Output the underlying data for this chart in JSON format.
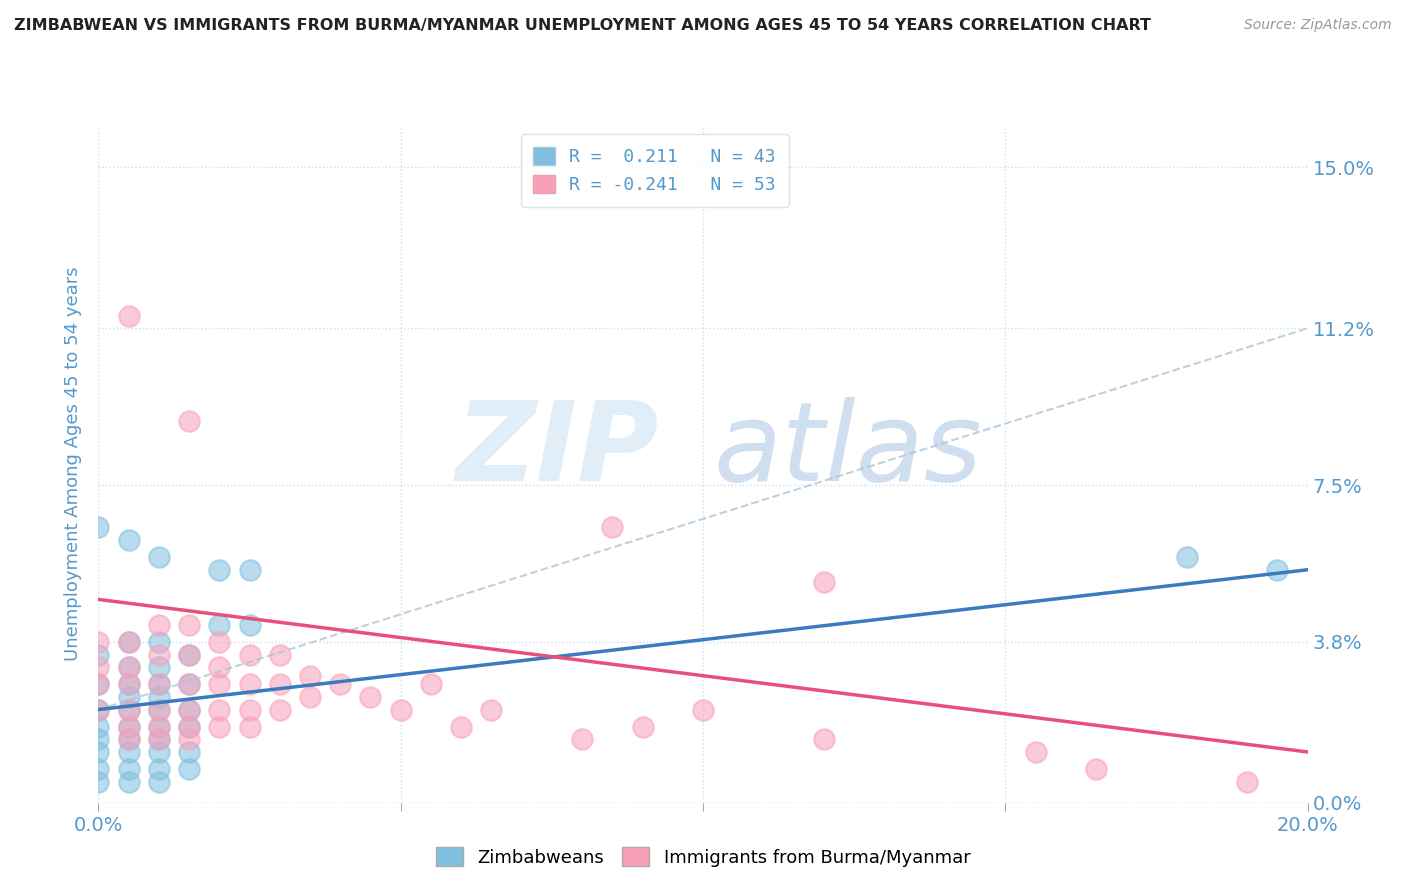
{
  "title": "ZIMBABWEAN VS IMMIGRANTS FROM BURMA/MYANMAR UNEMPLOYMENT AMONG AGES 45 TO 54 YEARS CORRELATION CHART",
  "source": "Source: ZipAtlas.com",
  "ylabel": "Unemployment Among Ages 45 to 54 years",
  "xlim": [
    0.0,
    0.2
  ],
  "ylim": [
    0.0,
    0.16
  ],
  "ytick_labels": [
    "0.0%",
    "3.8%",
    "7.5%",
    "11.2%",
    "15.0%"
  ],
  "ytick_values": [
    0.0,
    0.038,
    0.075,
    0.112,
    0.15
  ],
  "watermark_zip": "ZIP",
  "watermark_atlas": "atlas",
  "blue_color": "#7fbfdf",
  "pink_color": "#f8a0b8",
  "blue_line_color": "#3a7abf",
  "pink_line_color": "#e8507a",
  "grid_color": "#c8dded",
  "label_color": "#5599cc",
  "blue_scatter": [
    [
      0.0,
      0.035
    ],
    [
      0.0,
      0.028
    ],
    [
      0.0,
      0.022
    ],
    [
      0.0,
      0.018
    ],
    [
      0.0,
      0.015
    ],
    [
      0.0,
      0.012
    ],
    [
      0.0,
      0.008
    ],
    [
      0.0,
      0.005
    ],
    [
      0.005,
      0.038
    ],
    [
      0.005,
      0.032
    ],
    [
      0.005,
      0.028
    ],
    [
      0.005,
      0.025
    ],
    [
      0.005,
      0.022
    ],
    [
      0.005,
      0.018
    ],
    [
      0.005,
      0.015
    ],
    [
      0.005,
      0.012
    ],
    [
      0.005,
      0.008
    ],
    [
      0.005,
      0.005
    ],
    [
      0.01,
      0.038
    ],
    [
      0.01,
      0.032
    ],
    [
      0.01,
      0.028
    ],
    [
      0.01,
      0.025
    ],
    [
      0.01,
      0.022
    ],
    [
      0.01,
      0.018
    ],
    [
      0.01,
      0.015
    ],
    [
      0.01,
      0.012
    ],
    [
      0.01,
      0.008
    ],
    [
      0.01,
      0.005
    ],
    [
      0.015,
      0.035
    ],
    [
      0.015,
      0.028
    ],
    [
      0.015,
      0.022
    ],
    [
      0.015,
      0.018
    ],
    [
      0.015,
      0.012
    ],
    [
      0.015,
      0.008
    ],
    [
      0.02,
      0.055
    ],
    [
      0.02,
      0.042
    ],
    [
      0.025,
      0.055
    ],
    [
      0.025,
      0.042
    ],
    [
      0.0,
      0.065
    ],
    [
      0.005,
      0.062
    ],
    [
      0.01,
      0.058
    ],
    [
      0.18,
      0.058
    ],
    [
      0.195,
      0.055
    ]
  ],
  "pink_scatter": [
    [
      0.005,
      0.115
    ],
    [
      0.015,
      0.09
    ],
    [
      0.0,
      0.038
    ],
    [
      0.0,
      0.032
    ],
    [
      0.0,
      0.028
    ],
    [
      0.0,
      0.022
    ],
    [
      0.005,
      0.038
    ],
    [
      0.005,
      0.032
    ],
    [
      0.005,
      0.028
    ],
    [
      0.005,
      0.022
    ],
    [
      0.005,
      0.018
    ],
    [
      0.005,
      0.015
    ],
    [
      0.01,
      0.042
    ],
    [
      0.01,
      0.035
    ],
    [
      0.01,
      0.028
    ],
    [
      0.01,
      0.022
    ],
    [
      0.01,
      0.018
    ],
    [
      0.01,
      0.015
    ],
    [
      0.015,
      0.042
    ],
    [
      0.015,
      0.035
    ],
    [
      0.015,
      0.028
    ],
    [
      0.015,
      0.022
    ],
    [
      0.015,
      0.018
    ],
    [
      0.015,
      0.015
    ],
    [
      0.02,
      0.038
    ],
    [
      0.02,
      0.032
    ],
    [
      0.02,
      0.028
    ],
    [
      0.02,
      0.022
    ],
    [
      0.02,
      0.018
    ],
    [
      0.025,
      0.035
    ],
    [
      0.025,
      0.028
    ],
    [
      0.025,
      0.022
    ],
    [
      0.025,
      0.018
    ],
    [
      0.03,
      0.035
    ],
    [
      0.03,
      0.028
    ],
    [
      0.03,
      0.022
    ],
    [
      0.035,
      0.03
    ],
    [
      0.035,
      0.025
    ],
    [
      0.04,
      0.028
    ],
    [
      0.045,
      0.025
    ],
    [
      0.05,
      0.022
    ],
    [
      0.055,
      0.028
    ],
    [
      0.06,
      0.018
    ],
    [
      0.065,
      0.022
    ],
    [
      0.08,
      0.015
    ],
    [
      0.09,
      0.018
    ],
    [
      0.1,
      0.022
    ],
    [
      0.12,
      0.015
    ],
    [
      0.155,
      0.012
    ],
    [
      0.165,
      0.008
    ],
    [
      0.19,
      0.005
    ],
    [
      0.085,
      0.065
    ],
    [
      0.12,
      0.052
    ]
  ],
  "blue_regression": {
    "x_start": 0.0,
    "x_end": 0.2,
    "y_start": 0.022,
    "y_end": 0.055
  },
  "pink_regression": {
    "x_start": 0.0,
    "x_end": 0.2,
    "y_start": 0.048,
    "y_end": 0.012
  },
  "gray_regression": {
    "x_start": 0.0,
    "x_end": 0.2,
    "y_start": 0.022,
    "y_end": 0.112
  }
}
